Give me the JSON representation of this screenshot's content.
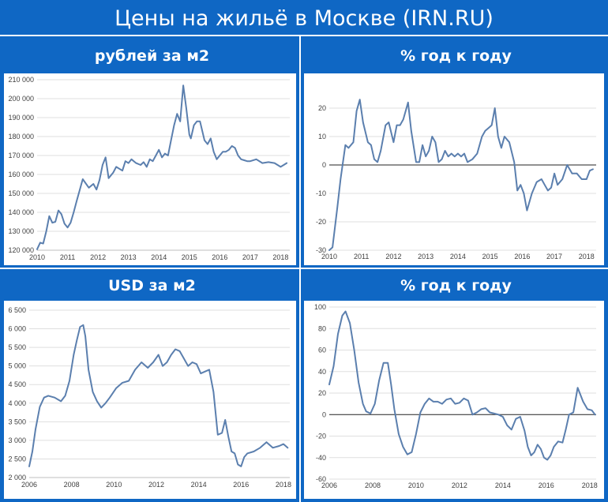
{
  "title": "Цены на жильё в Москве (IRN.RU)",
  "colors": {
    "background": "#0f67c4",
    "line": "#5b7fae",
    "panel": "#ffffff",
    "grid": "#dfdfdf",
    "zero_line": "#222222"
  },
  "chart_data": [
    {
      "type": "line",
      "title": "рублей за м2",
      "xlabel": "",
      "ylabel": "",
      "xlim": [
        2010.0,
        2018.3
      ],
      "ylim": [
        120000,
        210000
      ],
      "x_ticks": [
        2010,
        2011,
        2012,
        2013,
        2014,
        2015,
        2016,
        2017,
        2018
      ],
      "y_ticks": [
        120000,
        130000,
        140000,
        150000,
        160000,
        170000,
        180000,
        190000,
        200000,
        210000
      ],
      "y_tick_labels": [
        "120 000",
        "130 000",
        "140 000",
        "150 000",
        "160 000",
        "170 000",
        "180 000",
        "190 000",
        "200 000",
        "210 000"
      ],
      "grid": true,
      "series": [
        {
          "x": [
            2010.0,
            2010.1,
            2010.2,
            2010.3,
            2010.4,
            2010.5,
            2010.6,
            2010.7,
            2010.8,
            2010.9,
            2011.0,
            2011.1,
            2011.2,
            2011.3,
            2011.5,
            2011.7,
            2011.85,
            2011.95,
            2012.05,
            2012.15,
            2012.25,
            2012.35,
            2012.5,
            2012.6,
            2012.8,
            2012.9,
            2013.0,
            2013.1,
            2013.25,
            2013.4,
            2013.5,
            2013.6,
            2013.7,
            2013.8,
            2013.9,
            2014.0,
            2014.1,
            2014.2,
            2014.3,
            2014.4,
            2014.5,
            2014.6,
            2014.7,
            2014.8,
            2014.9,
            2015.0,
            2015.05,
            2015.15,
            2015.25,
            2015.35,
            2015.5,
            2015.6,
            2015.7,
            2015.8,
            2015.9,
            2016.0,
            2016.1,
            2016.2,
            2016.3,
            2016.4,
            2016.5,
            2016.6,
            2016.7,
            2016.8,
            2016.9,
            2017.0,
            2017.2,
            2017.4,
            2017.6,
            2017.8,
            2018.0,
            2018.1,
            2018.2
          ],
          "y": [
            120500,
            124000,
            123500,
            130000,
            138000,
            134500,
            135000,
            141000,
            139000,
            134000,
            132000,
            134500,
            140000,
            146000,
            157500,
            153000,
            155000,
            152000,
            157000,
            165000,
            169000,
            158000,
            161000,
            164000,
            162000,
            167000,
            166000,
            168000,
            166000,
            165000,
            166500,
            164000,
            168000,
            167000,
            170000,
            173000,
            169000,
            171000,
            170000,
            178000,
            186000,
            192000,
            188000,
            207000,
            195000,
            181000,
            179000,
            186000,
            188000,
            188000,
            178000,
            176000,
            179000,
            172000,
            168000,
            170000,
            172000,
            172000,
            173000,
            175000,
            174000,
            170000,
            168000,
            167500,
            167000,
            167000,
            168000,
            166000,
            166500,
            166000,
            164000,
            165000,
            166000
          ]
        }
      ]
    },
    {
      "type": "line",
      "title": "% год к году",
      "xlabel": "",
      "ylabel": "",
      "xlim": [
        2010.0,
        2018.3
      ],
      "ylim": [
        -30,
        25
      ],
      "x_ticks": [
        2010,
        2011,
        2012,
        2013,
        2014,
        2015,
        2016,
        2017,
        2018
      ],
      "y_ticks": [
        -30,
        -20,
        -10,
        0,
        10,
        20
      ],
      "y_tick_labels": [
        "-30",
        "-20",
        "-10",
        "0",
        "10",
        "20"
      ],
      "grid": true,
      "series": [
        {
          "x": [
            2010.0,
            2010.1,
            2010.25,
            2010.35,
            2010.5,
            2010.6,
            2010.75,
            2010.85,
            2010.95,
            2011.05,
            2011.2,
            2011.3,
            2011.4,
            2011.5,
            2011.6,
            2011.75,
            2011.85,
            2012.0,
            2012.1,
            2012.2,
            2012.3,
            2012.45,
            2012.55,
            2012.7,
            2012.8,
            2012.9,
            2013.0,
            2013.1,
            2013.2,
            2013.3,
            2013.4,
            2013.5,
            2013.6,
            2013.7,
            2013.8,
            2013.9,
            2014.0,
            2014.1,
            2014.2,
            2014.3,
            2014.45,
            2014.6,
            2014.75,
            2014.85,
            2014.95,
            2015.05,
            2015.15,
            2015.25,
            2015.35,
            2015.45,
            2015.6,
            2015.75,
            2015.85,
            2015.95,
            2016.05,
            2016.15,
            2016.3,
            2016.45,
            2016.6,
            2016.7,
            2016.8,
            2016.9,
            2017.0,
            2017.1,
            2017.25,
            2017.4,
            2017.55,
            2017.7,
            2017.85,
            2018.0,
            2018.1,
            2018.2
          ],
          "y": [
            -30,
            -29,
            -15,
            -5,
            7,
            6,
            8,
            19,
            23,
            15,
            8,
            7,
            2,
            1,
            5,
            14,
            15,
            8,
            14,
            14,
            16,
            22,
            12,
            1,
            1,
            7,
            3,
            5,
            10,
            8,
            1,
            2,
            5,
            3,
            4,
            3,
            4,
            3,
            4,
            1,
            2,
            4,
            10,
            12,
            13,
            14,
            20,
            10,
            6,
            10,
            8,
            1,
            -9,
            -7,
            -10,
            -16,
            -10,
            -6,
            -5,
            -7,
            -9,
            -8,
            -3,
            -7,
            -5,
            0,
            -3,
            -3,
            -5,
            -5,
            -2,
            -1.5
          ]
        }
      ]
    },
    {
      "type": "line",
      "title": "USD за м2",
      "xlabel": "",
      "ylabel": "",
      "xlim": [
        2006.0,
        2018.3
      ],
      "ylim": [
        2000,
        6500
      ],
      "x_ticks": [
        2006,
        2008,
        2010,
        2012,
        2014,
        2016,
        2018
      ],
      "y_ticks": [
        2000,
        2500,
        3000,
        3500,
        4000,
        4500,
        5000,
        5500,
        6000,
        6500
      ],
      "y_tick_labels": [
        "2 000",
        "2 500",
        "3 000",
        "3 500",
        "4 000",
        "4 500",
        "5 000",
        "5 500",
        "6 000",
        "6 500"
      ],
      "grid": true,
      "series": [
        {
          "x": [
            2006.0,
            2006.15,
            2006.3,
            2006.5,
            2006.7,
            2006.9,
            2007.2,
            2007.5,
            2007.7,
            2007.9,
            2008.1,
            2008.25,
            2008.4,
            2008.55,
            2008.65,
            2008.8,
            2009.0,
            2009.2,
            2009.4,
            2009.6,
            2009.8,
            2010.1,
            2010.4,
            2010.7,
            2011.0,
            2011.3,
            2011.6,
            2011.85,
            2012.1,
            2012.3,
            2012.5,
            2012.7,
            2012.9,
            2013.1,
            2013.3,
            2013.5,
            2013.7,
            2013.9,
            2014.1,
            2014.3,
            2014.5,
            2014.7,
            2014.9,
            2015.1,
            2015.25,
            2015.4,
            2015.55,
            2015.7,
            2015.85,
            2016.0,
            2016.15,
            2016.3,
            2016.6,
            2016.9,
            2017.2,
            2017.5,
            2017.8,
            2018.0,
            2018.2
          ],
          "y": [
            2300,
            2700,
            3300,
            3900,
            4150,
            4200,
            4150,
            4050,
            4200,
            4600,
            5300,
            5700,
            6050,
            6100,
            5800,
            4900,
            4300,
            4050,
            3880,
            4000,
            4150,
            4400,
            4550,
            4600,
            4900,
            5100,
            4950,
            5100,
            5300,
            5000,
            5100,
            5300,
            5450,
            5400,
            5200,
            5000,
            5100,
            5050,
            4800,
            4850,
            4900,
            4300,
            3150,
            3200,
            3550,
            3100,
            2700,
            2650,
            2350,
            2300,
            2550,
            2650,
            2700,
            2800,
            2950,
            2800,
            2850,
            2900,
            2800
          ]
        }
      ]
    },
    {
      "type": "line",
      "title": "% год к году",
      "xlabel": "",
      "ylabel": "",
      "xlim": [
        2006.0,
        2018.3
      ],
      "ylim": [
        -60,
        100
      ],
      "x_ticks": [
        2006,
        2008,
        2010,
        2012,
        2014,
        2016,
        2018
      ],
      "y_ticks": [
        -60,
        -40,
        -20,
        0,
        20,
        40,
        60,
        80,
        100
      ],
      "y_tick_labels": [
        "-60",
        "-40",
        "-20",
        "0",
        "20",
        "40",
        "60",
        "80",
        "100"
      ],
      "grid": true,
      "series": [
        {
          "x": [
            2006.0,
            2006.2,
            2006.4,
            2006.6,
            2006.75,
            2006.95,
            2007.15,
            2007.35,
            2007.55,
            2007.7,
            2007.9,
            2008.1,
            2008.3,
            2008.5,
            2008.7,
            2008.85,
            2009.0,
            2009.2,
            2009.4,
            2009.6,
            2009.8,
            2010.0,
            2010.2,
            2010.4,
            2010.6,
            2010.8,
            2011.0,
            2011.2,
            2011.4,
            2011.6,
            2011.8,
            2012.0,
            2012.2,
            2012.4,
            2012.6,
            2012.8,
            2013.0,
            2013.2,
            2013.4,
            2013.6,
            2013.8,
            2014.0,
            2014.2,
            2014.4,
            2014.6,
            2014.8,
            2015.0,
            2015.15,
            2015.3,
            2015.45,
            2015.6,
            2015.75,
            2015.9,
            2016.05,
            2016.2,
            2016.35,
            2016.55,
            2016.75,
            2016.9,
            2017.05,
            2017.25,
            2017.45,
            2017.7,
            2017.9,
            2018.1,
            2018.25
          ],
          "y": [
            28,
            45,
            75,
            92,
            96,
            85,
            60,
            30,
            10,
            3,
            1,
            10,
            32,
            48,
            48,
            28,
            5,
            -18,
            -30,
            -37,
            -35,
            -18,
            2,
            10,
            15,
            12,
            12,
            10,
            14,
            15,
            10,
            11,
            15,
            13,
            0,
            2,
            5,
            6,
            2,
            1,
            0,
            -2,
            -10,
            -14,
            -4,
            -2,
            -15,
            -30,
            -38,
            -35,
            -28,
            -32,
            -40,
            -42,
            -38,
            -30,
            -25,
            -26,
            -14,
            0,
            2,
            25,
            12,
            5,
            4,
            0
          ]
        }
      ]
    }
  ]
}
